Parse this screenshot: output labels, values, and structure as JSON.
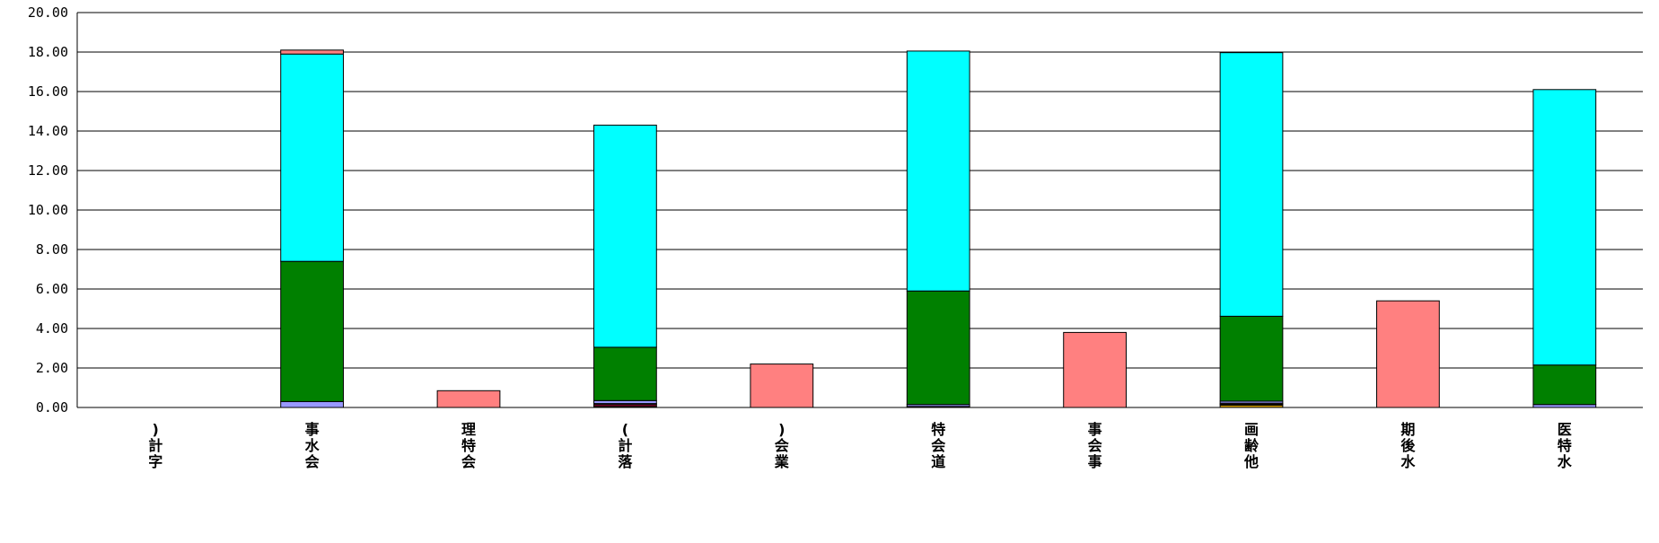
{
  "chart_data": {
    "type": "bar",
    "stacked": true,
    "ylim": [
      0,
      20
    ],
    "yticks": [
      "0.00",
      "2.00",
      "4.00",
      "6.00",
      "8.00",
      "10.00",
      "12.00",
      "14.00",
      "16.00",
      "18.00",
      "20.00"
    ],
    "grid": true,
    "legend": "none",
    "categories": [
      ")\n計\n字",
      "事\n水\n会",
      "理\n特\n会",
      "(\n計\n落",
      ")\n会\n業",
      "特\n会\n道",
      "事\n会\n事",
      "画\n齢\n他",
      "期\n後\n水",
      "医\n特\n水"
    ],
    "series": [
      {
        "color": "#cc9900",
        "values": [
          0,
          0,
          0,
          0.05,
          0,
          0,
          0,
          0.12,
          0,
          0
        ]
      },
      {
        "color": "#990033",
        "values": [
          0,
          0,
          0,
          0.1,
          0,
          0.05,
          0,
          0.05,
          0,
          0
        ]
      },
      {
        "color": "#ff99cc",
        "values": [
          0,
          0,
          0,
          0.05,
          0,
          0,
          0,
          0.05,
          0,
          0
        ]
      },
      {
        "color": "#9999ff",
        "values": [
          0,
          0.3,
          0,
          0.15,
          0,
          0.1,
          0,
          0.1,
          0,
          0.15
        ]
      },
      {
        "color": "#008000",
        "values": [
          0,
          7.1,
          0,
          2.7,
          0,
          5.75,
          0,
          4.3,
          0,
          2.0
        ]
      },
      {
        "color": "#00ffff",
        "values": [
          0,
          10.5,
          0,
          11.25,
          0,
          12.15,
          0,
          13.35,
          0,
          13.95
        ]
      },
      {
        "color": "#ff8080",
        "values": [
          0,
          0.2,
          0.85,
          0,
          2.2,
          0,
          3.8,
          0,
          5.4,
          0
        ]
      }
    ]
  }
}
